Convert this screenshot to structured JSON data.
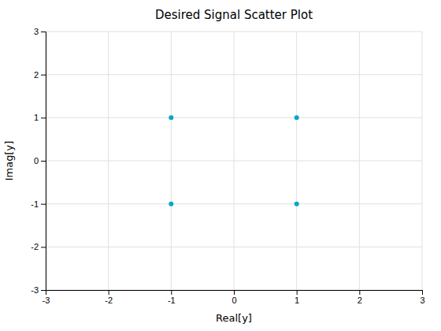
{
  "chart_data": {
    "type": "scatter",
    "title": "Desired Signal Scatter Plot",
    "xlabel": "Real[y]",
    "ylabel": "Imag[y]",
    "x": [
      -1,
      1,
      -1,
      1
    ],
    "values": [
      1,
      1,
      -1,
      -1
    ],
    "color": "#00A6C7",
    "marker": "point",
    "xlim": [
      -3,
      3
    ],
    "ylim": [
      -3,
      3
    ],
    "xticks": [
      -3,
      -2,
      -1,
      0,
      1,
      2,
      3
    ],
    "yticks": [
      -3,
      -2,
      -1,
      0,
      1,
      2,
      3
    ],
    "grid": true
  }
}
